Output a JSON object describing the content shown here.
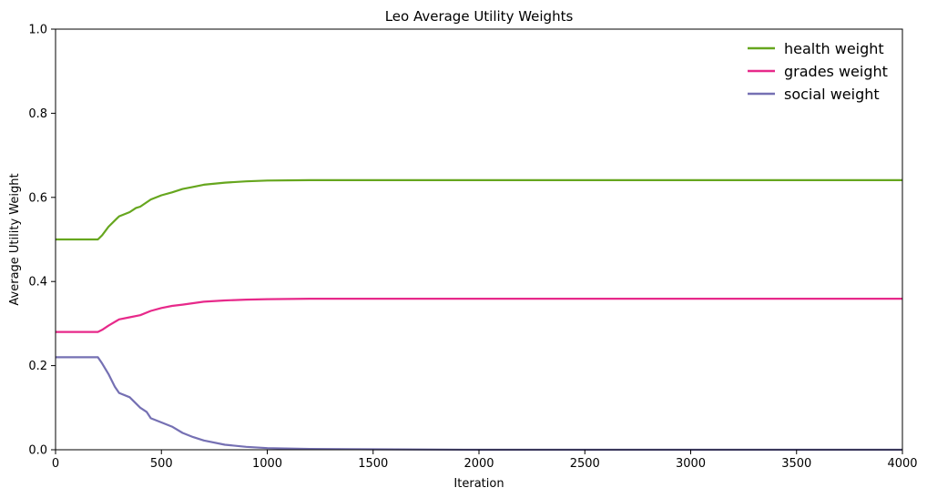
{
  "chart_data": {
    "type": "line",
    "title": "Leo Average Utility Weights",
    "xlabel": "Iteration",
    "ylabel": "Average Utility Weight",
    "xlim": [
      0,
      4000
    ],
    "ylim": [
      0,
      1
    ],
    "xticks": [
      0,
      500,
      1000,
      1500,
      2000,
      2500,
      3000,
      3500,
      4000
    ],
    "xtick_labels": [
      "0",
      "500",
      "1000",
      "1500",
      "2000",
      "2500",
      "3000",
      "3500",
      "4000"
    ],
    "yticks": [
      0.0,
      0.2,
      0.4,
      0.6,
      0.8,
      1.0
    ],
    "ytick_labels": [
      "0.0",
      "0.2",
      "0.4",
      "0.6",
      "0.8",
      "1.0"
    ],
    "grid": false,
    "legend_position": "top-right",
    "series": [
      {
        "name": "health weight",
        "color": "#66a61e",
        "x": [
          0,
          100,
          200,
          220,
          250,
          300,
          350,
          380,
          400,
          450,
          500,
          550,
          600,
          650,
          700,
          800,
          900,
          1000,
          1200,
          1500,
          2000,
          3000,
          4000
        ],
        "y": [
          0.5,
          0.5,
          0.5,
          0.51,
          0.53,
          0.555,
          0.565,
          0.575,
          0.578,
          0.595,
          0.605,
          0.612,
          0.62,
          0.625,
          0.63,
          0.635,
          0.638,
          0.64,
          0.641,
          0.641,
          0.641,
          0.641,
          0.641
        ]
      },
      {
        "name": "grades weight",
        "color": "#e7298a",
        "x": [
          0,
          100,
          200,
          220,
          250,
          300,
          350,
          400,
          450,
          500,
          550,
          600,
          700,
          800,
          900,
          1000,
          1200,
          1500,
          2000,
          3000,
          4000
        ],
        "y": [
          0.28,
          0.28,
          0.28,
          0.285,
          0.295,
          0.31,
          0.315,
          0.32,
          0.33,
          0.337,
          0.342,
          0.345,
          0.352,
          0.355,
          0.357,
          0.358,
          0.359,
          0.359,
          0.359,
          0.359,
          0.359
        ]
      },
      {
        "name": "social weight",
        "color": "#7570b3",
        "x": [
          0,
          100,
          200,
          220,
          250,
          280,
          300,
          350,
          400,
          430,
          450,
          500,
          550,
          600,
          650,
          700,
          800,
          900,
          1000,
          1200,
          1500,
          2000,
          3000,
          4000
        ],
        "y": [
          0.22,
          0.22,
          0.22,
          0.205,
          0.18,
          0.15,
          0.135,
          0.125,
          0.1,
          0.09,
          0.075,
          0.065,
          0.055,
          0.04,
          0.03,
          0.022,
          0.012,
          0.007,
          0.004,
          0.002,
          0.001,
          0.0,
          0.0,
          0.0
        ]
      }
    ]
  }
}
